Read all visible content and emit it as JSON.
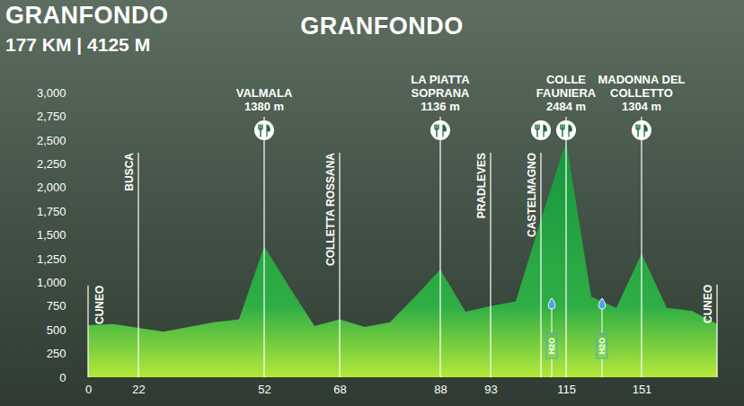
{
  "chart_data": {
    "type": "area",
    "title": "GRANFONDO",
    "annotations": [
      "GRANFONDO",
      "177 KM | 4125 M"
    ],
    "categories": [
      "0",
      null,
      "22",
      null,
      null,
      null,
      null,
      "52",
      null,
      null,
      "68",
      null,
      null,
      null,
      "88",
      null,
      "93",
      null,
      null,
      "115",
      null,
      null,
      "151",
      null,
      null,
      null
    ],
    "values": [
      550,
      560,
      520,
      480,
      530,
      580,
      610,
      1380,
      950,
      540,
      610,
      530,
      580,
      850,
      1136,
      690,
      750,
      800,
      1660,
      2484,
      850,
      730,
      1304,
      730,
      700,
      560
    ],
    "places": [
      {
        "name": "CUNEO"
      },
      null,
      {
        "name": "BUSCA"
      },
      null,
      null,
      null,
      null,
      {
        "name": "VALMALA",
        "altitude": "1380 m",
        "feed": true
      },
      null,
      null,
      {
        "name": "COLLETTA ROSSANA"
      },
      null,
      null,
      null,
      {
        "name": "LA PIATTA SOPRANA",
        "altitude": "1136 m",
        "feed": true
      },
      null,
      {
        "name": "PRADLEVES"
      },
      null,
      {
        "name": "CASTELMAGNO",
        "feed": true,
        "water": "H2O"
      },
      {
        "name": "COLLE FAUNIERA",
        "altitude": "2484 m",
        "feed": true
      },
      {
        "water": "H2O"
      },
      null,
      {
        "name": "MADONNA DEL COLLETTO",
        "altitude": "1304 m",
        "feed": true
      },
      null,
      null,
      {
        "name": "CUNEO"
      }
    ],
    "color": "#17963f",
    "ylim": [
      0,
      3000
    ],
    "yticks": [
      0,
      250,
      500,
      750,
      1000,
      1250,
      1500,
      1750,
      2000,
      2250,
      2500,
      2750,
      3000
    ],
    "grid": false
  }
}
